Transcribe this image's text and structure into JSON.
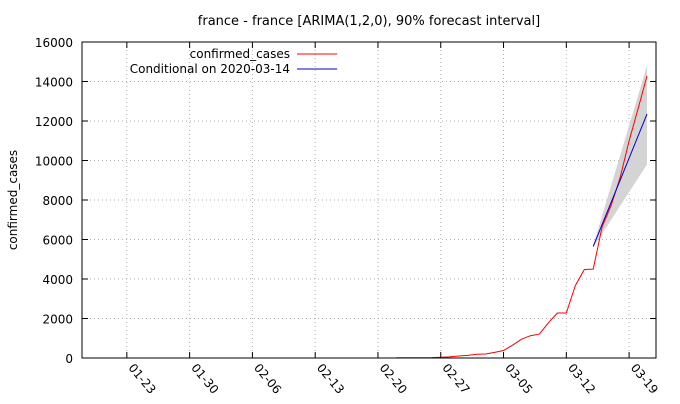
{
  "chart_data": {
    "type": "line",
    "title": "france - france [ARIMA(1,2,0), 90% forecast interval]",
    "xlabel": "",
    "ylabel": "confirmed_cases",
    "ylim": [
      0,
      16000
    ],
    "yticks": [
      0,
      2000,
      4000,
      6000,
      8000,
      10000,
      12000,
      14000,
      16000
    ],
    "xlim": [
      "2020-01-18",
      "2020-03-22"
    ],
    "xticks": [
      "01-23",
      "01-30",
      "02-06",
      "02-13",
      "02-20",
      "02-27",
      "03-05",
      "03-12",
      "03-19"
    ],
    "grid": true,
    "legend_position": "top-left",
    "colors": {
      "confirmed_cases": "#ff0000",
      "conditional": "#0000cc",
      "interval": "#d4d4d4"
    },
    "series": [
      {
        "name": "confirmed_cases",
        "x": [
          "2020-02-22",
          "2020-02-24",
          "2020-02-26",
          "2020-02-28",
          "2020-02-29",
          "2020-03-01",
          "2020-03-02",
          "2020-03-03",
          "2020-03-04",
          "2020-03-05",
          "2020-03-06",
          "2020-03-07",
          "2020-03-08",
          "2020-03-09",
          "2020-03-10",
          "2020-03-11",
          "2020-03-12",
          "2020-03-13",
          "2020-03-14",
          "2020-03-15",
          "2020-03-16",
          "2020-03-17",
          "2020-03-18",
          "2020-03-19",
          "2020-03-20",
          "2020-03-21"
        ],
        "values": [
          12,
          12,
          18,
          57,
          100,
          130,
          191,
          204,
          285,
          380,
          650,
          950,
          1130,
          1210,
          1780,
          2280,
          2280,
          3660,
          4480,
          4500,
          6650,
          7730,
          9130,
          10990,
          12630,
          14280
        ]
      },
      {
        "name": "Conditional on 2020-03-14",
        "x": [
          "2020-03-15",
          "2020-03-21"
        ],
        "values": [
          5650,
          12350
        ]
      }
    ],
    "interval": {
      "x": [
        "2020-03-15",
        "2020-03-21"
      ],
      "lower": [
        5600,
        9800
      ],
      "upper": [
        5700,
        14800
      ]
    }
  }
}
